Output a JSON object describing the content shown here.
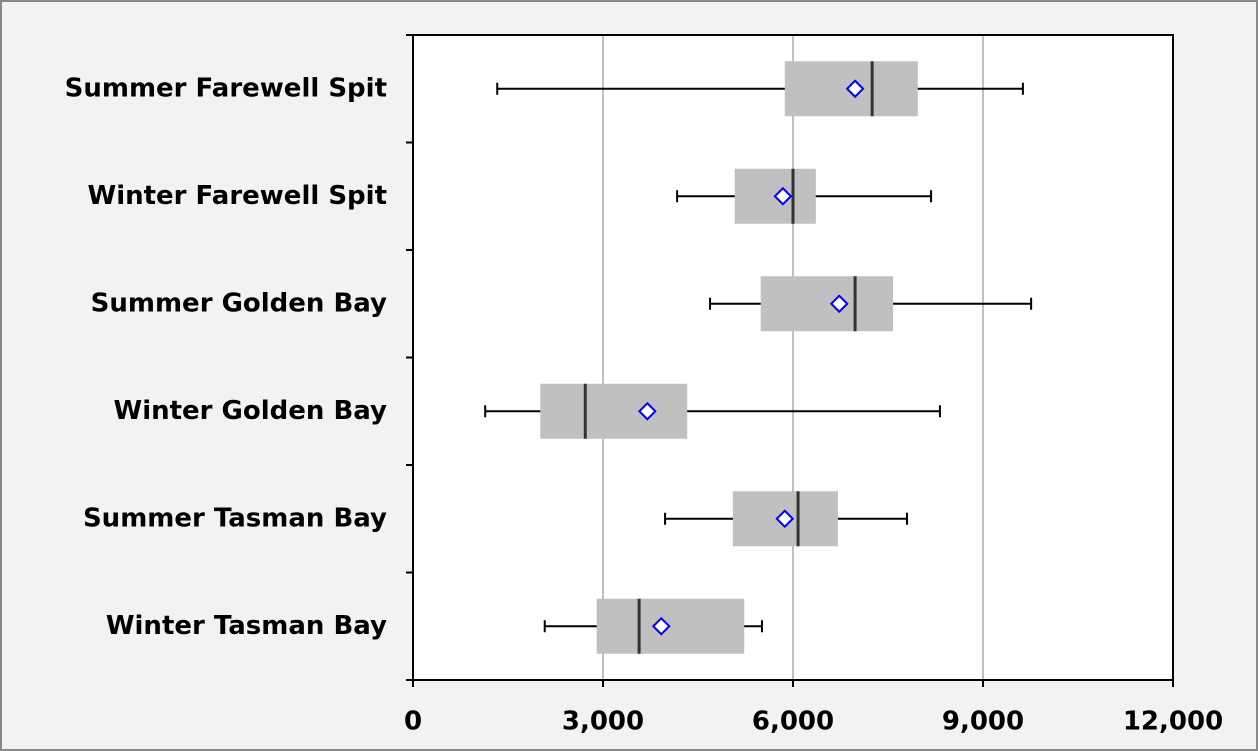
{
  "chart_data": {
    "type": "boxplot",
    "categories": [
      "Summer Farewell Spit",
      "Winter Farewell Spit",
      "Summer Golden Bay",
      "Winter Golden Bay",
      "Summer Tasman Bay",
      "Winter Tasman Bay"
    ],
    "min": [
      1330,
      4170,
      4690,
      1140,
      3980,
      2080
    ],
    "q1": [
      5870,
      5080,
      5490,
      2010,
      5050,
      2900
    ],
    "median": [
      7250,
      6000,
      6980,
      2720,
      6080,
      3570
    ],
    "q3": [
      7970,
      6360,
      7580,
      4330,
      6710,
      5230
    ],
    "max": [
      9630,
      8180,
      9760,
      8320,
      7800,
      5510
    ],
    "mean": [
      6980,
      5840,
      6730,
      3700,
      5870,
      3920
    ],
    "box_color": "#c0c0c0",
    "mean_color": "#0000ff",
    "xlim": [
      0,
      12000
    ],
    "xticks": [
      0,
      {
        "value": 3000,
        "label": "3,000"
      },
      {
        "value": 6000,
        "label": "6,000"
      },
      {
        "value": 9000,
        "label": "9,000"
      },
      {
        "value": 12000,
        "label": "12,000"
      }
    ],
    "grid": true
  }
}
